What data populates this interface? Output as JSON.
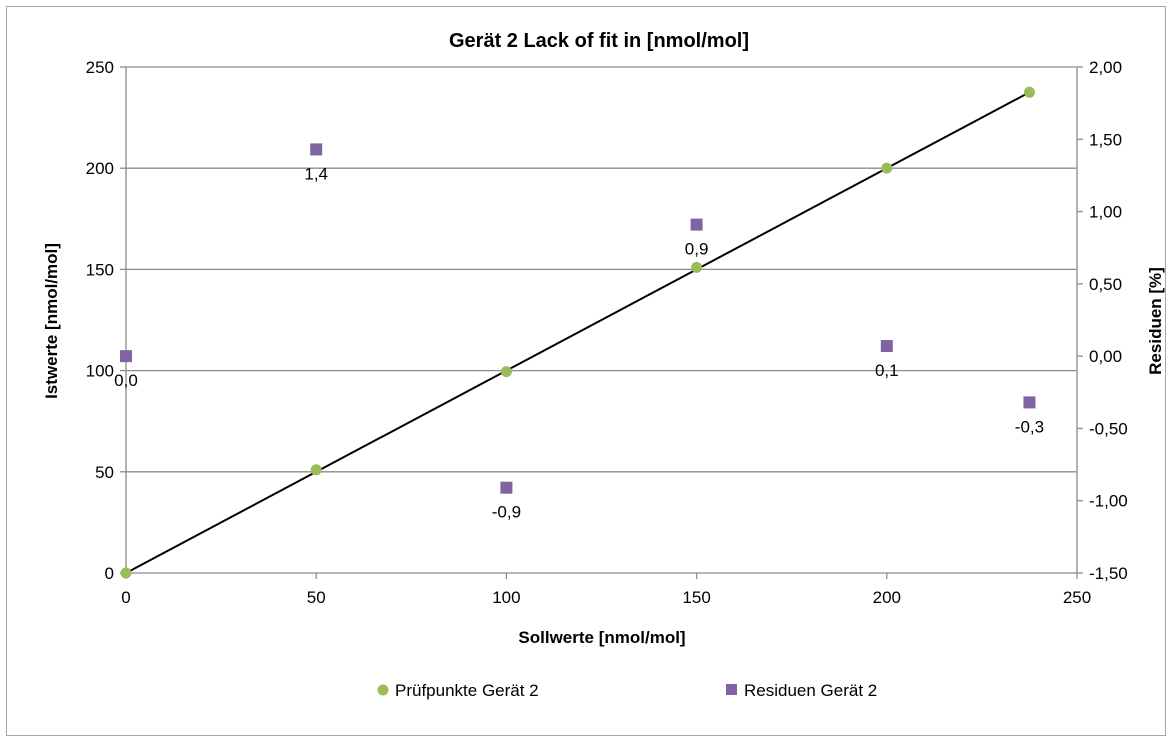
{
  "chart_data": {
    "type": "scatter",
    "title": "Gerät 2  Lack of fit in [nmol/mol]",
    "xlabel": "Sollwerte [nmol/mol]",
    "ylabel": "Istwerte [nmol/mol]",
    "y2label": "Residuen [%]",
    "xlim": [
      0,
      250
    ],
    "ylim": [
      0,
      250
    ],
    "y2lim": [
      -1.5,
      2.0
    ],
    "x_ticks": [
      "0",
      "50",
      "100",
      "150",
      "200",
      "250"
    ],
    "y_ticks": [
      "0",
      "50",
      "100",
      "150",
      "200",
      "250"
    ],
    "y2_ticks": [
      "-1,50",
      "-1,00",
      "-0,50",
      "0,00",
      "0,50",
      "1,00",
      "1,50",
      "2,00"
    ],
    "grid": "horizontal",
    "legend_position": "bottom",
    "series": [
      {
        "name": "Prüfpunkte Gerät 2",
        "marker": "circle",
        "color": "#9BBB59",
        "axis": "primary",
        "points": [
          {
            "x": 0,
            "y": 0
          },
          {
            "x": 50,
            "y": 51
          },
          {
            "x": 100,
            "y": 99.5
          },
          {
            "x": 150,
            "y": 151
          },
          {
            "x": 200,
            "y": 200
          },
          {
            "x": 237.5,
            "y": 237.5
          }
        ]
      },
      {
        "name": "Residuen Gerät 2",
        "marker": "square",
        "color": "#8064A2",
        "axis": "secondary",
        "points": [
          {
            "x": 0,
            "y": 0.0,
            "label": "0,0"
          },
          {
            "x": 50,
            "y": 1.43,
            "label": "1,4"
          },
          {
            "x": 100,
            "y": -0.91,
            "label": "-0,9"
          },
          {
            "x": 150,
            "y": 0.91,
            "label": "0,9"
          },
          {
            "x": 200,
            "y": 0.07,
            "label": "0,1"
          },
          {
            "x": 237.5,
            "y": -0.32,
            "label": "-0,3"
          }
        ]
      }
    ],
    "trendline": {
      "color": "#000000",
      "x": [
        0,
        237.5
      ],
      "y": [
        0,
        237.5
      ]
    }
  }
}
